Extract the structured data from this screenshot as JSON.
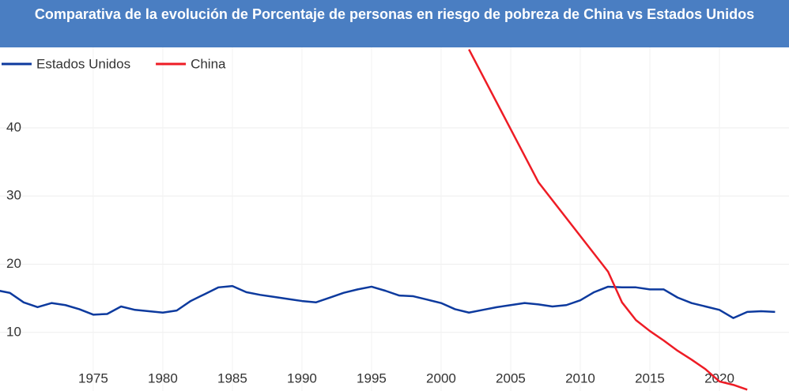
{
  "chart_data": {
    "type": "line",
    "title": "Comparativa de la evolución de Porcentaje de personas en riesgo de pobreza de China vs Estados Unidos",
    "xlim": [
      1968.3,
      2025
    ],
    "xticks": [
      1975,
      1980,
      1985,
      1990,
      1995,
      2000,
      2005,
      2010,
      2015,
      2020
    ],
    "ylim": [
      1.4,
      51.8
    ],
    "yticks": [
      10,
      20,
      30,
      40
    ],
    "grid": true,
    "legend": "top-left",
    "series": [
      {
        "name": "Estados Unidos",
        "color": "#0d3a9e",
        "x": [
          1968,
          1969,
          1970,
          1971,
          1972,
          1973,
          1974,
          1975,
          1976,
          1977,
          1978,
          1979,
          1980,
          1981,
          1982,
          1983,
          1984,
          1985,
          1986,
          1987,
          1988,
          1989,
          1990,
          1991,
          1992,
          1993,
          1994,
          1995,
          1996,
          1997,
          1998,
          1999,
          2000,
          2001,
          2002,
          2003,
          2004,
          2005,
          2006,
          2007,
          2008,
          2009,
          2010,
          2011,
          2012,
          2013,
          2014,
          2015,
          2016,
          2017,
          2018,
          2019,
          2020,
          2021,
          2022,
          2023,
          2024
        ],
        "values": [
          16.2,
          15.8,
          14.4,
          13.7,
          14.3,
          14.0,
          13.4,
          12.6,
          12.7,
          13.8,
          13.3,
          13.1,
          12.9,
          13.2,
          14.6,
          15.6,
          16.6,
          16.8,
          15.9,
          15.5,
          15.2,
          14.9,
          14.6,
          14.4,
          15.1,
          15.8,
          16.3,
          16.7,
          16.1,
          15.4,
          15.3,
          14.8,
          14.3,
          13.4,
          12.9,
          13.3,
          13.7,
          14.0,
          14.3,
          14.1,
          13.8,
          14.0,
          14.7,
          15.9,
          16.7,
          16.6,
          16.6,
          16.3,
          16.3,
          15.1,
          14.3,
          13.8,
          13.3,
          12.1,
          13.0,
          13.1,
          13.0
        ]
      },
      {
        "name": "China",
        "color": "#ee1c25",
        "x": [
          2002,
          2007,
          2012,
          2013,
          2014,
          2015,
          2016,
          2017,
          2018,
          2019,
          2020,
          2021,
          2022
        ],
        "values": [
          51.5,
          32.0,
          18.9,
          14.4,
          11.8,
          10.2,
          8.8,
          7.3,
          6.0,
          4.6,
          2.8,
          2.3,
          1.6
        ]
      }
    ]
  }
}
